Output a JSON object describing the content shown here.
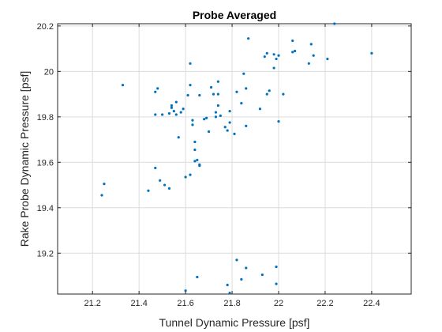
{
  "chart_data": {
    "type": "scatter",
    "title": "Probe Averaged",
    "xlabel": "Tunnel Dynamic Pressure [psf]",
    "ylabel": "Rake Probe Dynamic Pressure [psf]",
    "xlim": [
      21.05,
      22.57
    ],
    "ylim": [
      19.02,
      20.21
    ],
    "xticks": [
      21.2,
      21.4,
      21.6,
      21.8,
      22,
      22.2,
      22.4
    ],
    "xtick_labels": [
      "21.2",
      "21.4",
      "21.6",
      "21.8",
      "22",
      "22.2",
      "22.4"
    ],
    "yticks": [
      19.2,
      19.4,
      19.6,
      19.8,
      20,
      20.2
    ],
    "ytick_labels": [
      "19.2",
      "19.4",
      "19.6",
      "19.8",
      "20",
      "20.2"
    ],
    "grid": true,
    "marker_color": "#0072BD",
    "series": [
      {
        "points": [
          [
            21.24,
            19.455
          ],
          [
            21.25,
            19.505
          ],
          [
            21.33,
            19.94
          ],
          [
            21.44,
            19.475
          ],
          [
            21.47,
            19.575
          ],
          [
            21.47,
            19.81
          ],
          [
            21.47,
            19.91
          ],
          [
            21.48,
            19.925
          ],
          [
            21.49,
            19.52
          ],
          [
            21.5,
            19.81
          ],
          [
            21.51,
            19.5
          ],
          [
            21.53,
            19.815
          ],
          [
            21.53,
            19.485
          ],
          [
            21.54,
            19.84
          ],
          [
            21.54,
            19.85
          ],
          [
            21.55,
            19.825
          ],
          [
            21.56,
            19.81
          ],
          [
            21.56,
            19.865
          ],
          [
            21.57,
            19.71
          ],
          [
            21.58,
            19.82
          ],
          [
            21.59,
            19.835
          ],
          [
            21.6,
            19.535
          ],
          [
            21.61,
            19.895
          ],
          [
            21.62,
            19.94
          ],
          [
            21.62,
            20.035
          ],
          [
            21.62,
            19.545
          ],
          [
            21.63,
            19.765
          ],
          [
            21.63,
            19.785
          ],
          [
            21.64,
            19.69
          ],
          [
            21.64,
            19.655
          ],
          [
            21.64,
            19.605
          ],
          [
            21.65,
            19.61
          ],
          [
            21.66,
            19.895
          ],
          [
            21.66,
            19.585
          ],
          [
            21.66,
            19.59
          ],
          [
            21.68,
            19.79
          ],
          [
            21.69,
            19.795
          ],
          [
            21.7,
            19.735
          ],
          [
            21.71,
            19.93
          ],
          [
            21.72,
            19.9
          ],
          [
            21.73,
            19.8
          ],
          [
            21.73,
            19.82
          ],
          [
            21.74,
            19.9
          ],
          [
            21.74,
            19.955
          ],
          [
            21.74,
            19.85
          ],
          [
            21.75,
            19.805
          ],
          [
            21.77,
            19.755
          ],
          [
            21.78,
            19.74
          ],
          [
            21.79,
            19.775
          ],
          [
            21.79,
            19.825
          ],
          [
            21.81,
            19.725
          ],
          [
            21.82,
            19.91
          ],
          [
            21.84,
            19.86
          ],
          [
            21.85,
            19.99
          ],
          [
            21.86,
            19.925
          ],
          [
            21.86,
            19.76
          ],
          [
            21.87,
            20.145
          ],
          [
            21.92,
            19.835
          ],
          [
            21.94,
            20.065
          ],
          [
            21.95,
            20.08
          ],
          [
            21.95,
            19.9
          ],
          [
            21.96,
            19.915
          ],
          [
            21.98,
            20.075
          ],
          [
            21.98,
            20.015
          ],
          [
            21.99,
            20.055
          ],
          [
            22.0,
            20.07
          ],
          [
            22.0,
            19.78
          ],
          [
            22.02,
            19.9
          ],
          [
            22.06,
            20.135
          ],
          [
            22.06,
            20.085
          ],
          [
            22.07,
            20.09
          ],
          [
            22.13,
            20.035
          ],
          [
            22.14,
            20.12
          ],
          [
            22.15,
            20.07
          ],
          [
            22.21,
            20.055
          ],
          [
            22.24,
            20.21
          ],
          [
            22.4,
            20.08
          ],
          [
            21.82,
            19.17
          ],
          [
            21.86,
            19.135
          ],
          [
            21.99,
            19.14
          ],
          [
            21.93,
            19.105
          ],
          [
            21.65,
            19.095
          ],
          [
            21.84,
            19.085
          ],
          [
            21.99,
            19.065
          ],
          [
            21.78,
            19.06
          ],
          [
            21.6,
            19.035
          ],
          [
            21.79,
            19.025
          ]
        ]
      }
    ]
  }
}
